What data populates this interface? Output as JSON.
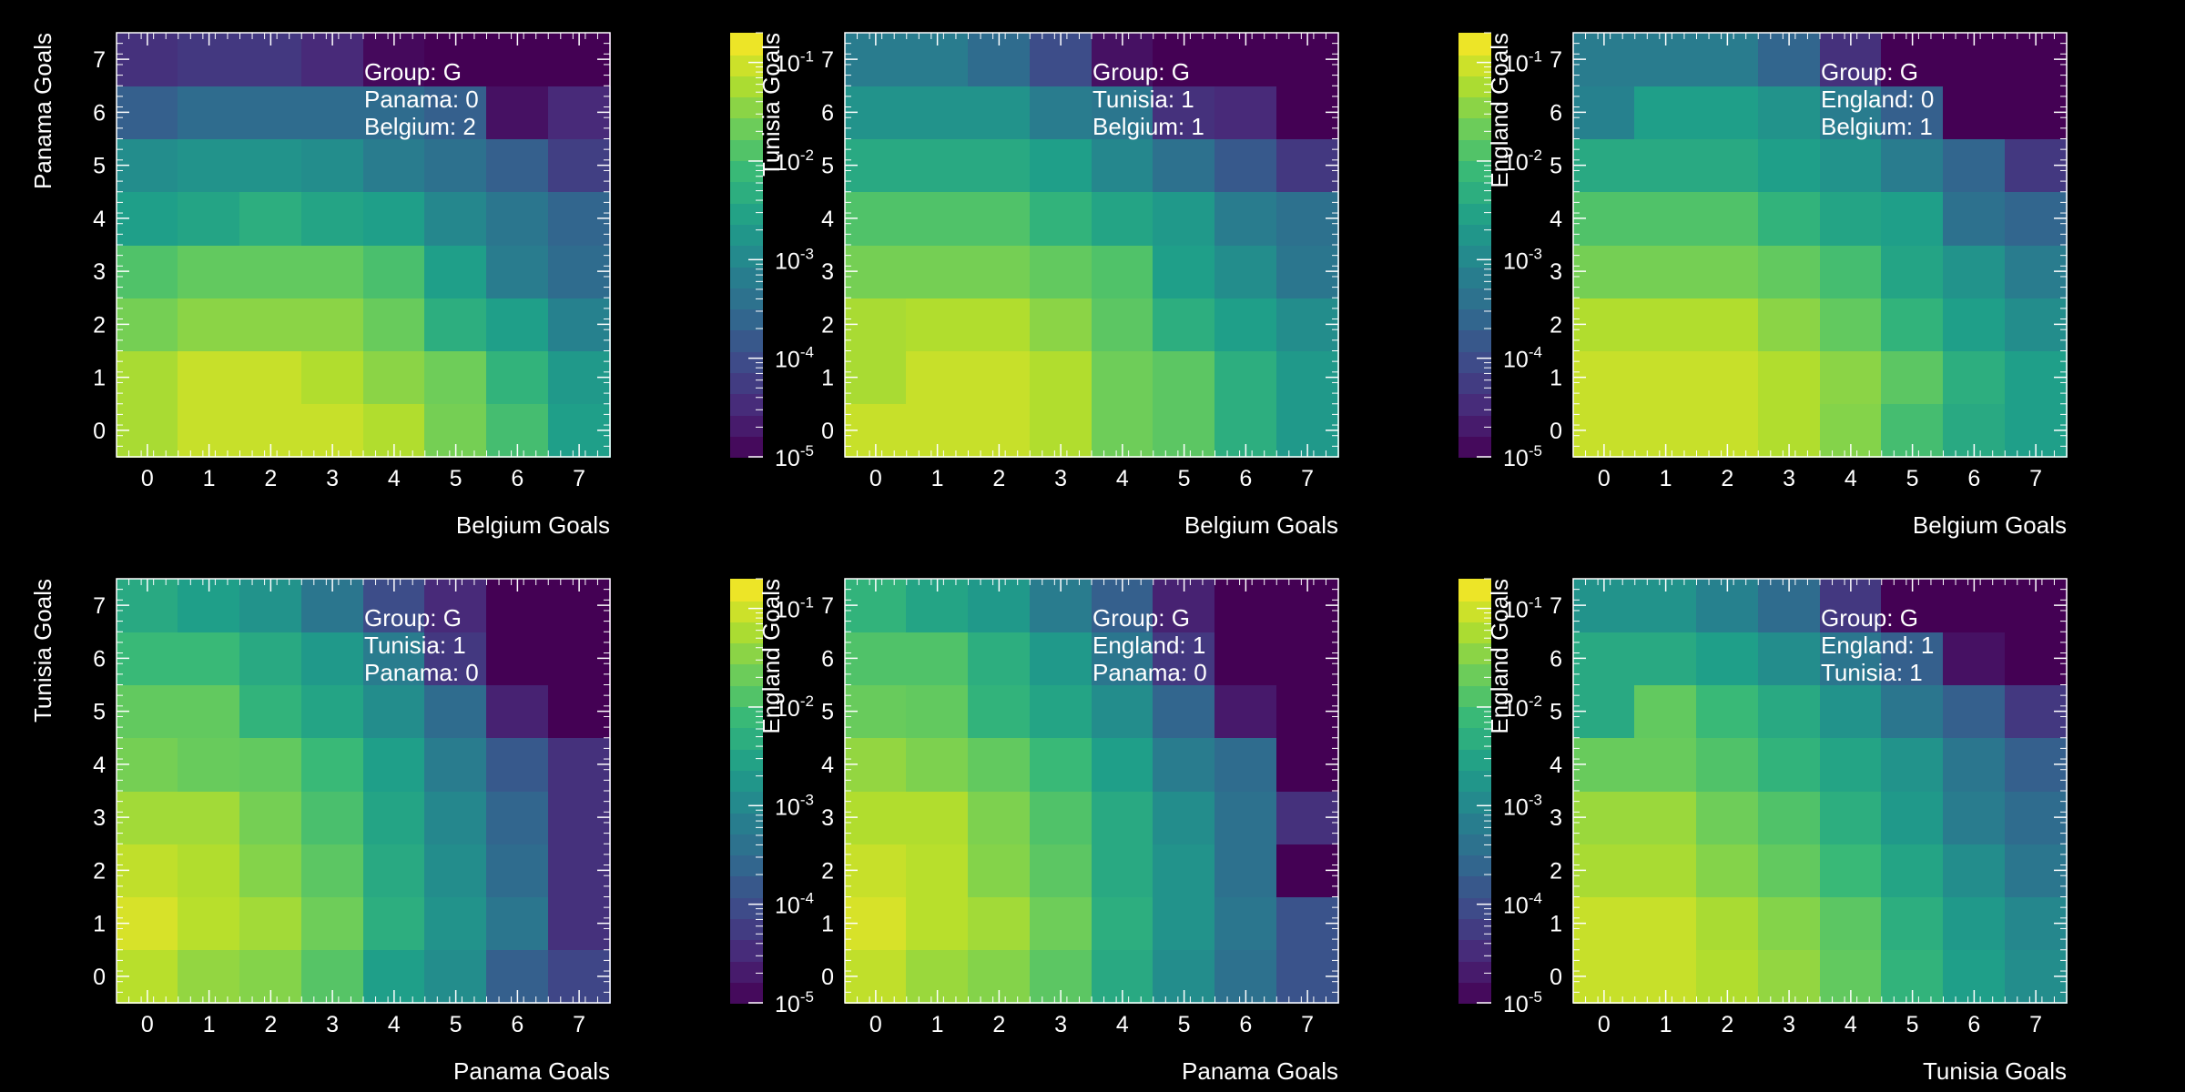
{
  "chart_data": [
    {
      "type": "heatmap",
      "xlabel": "Belgium Goals",
      "ylabel": "Panama Goals",
      "x_ticks": [
        "0",
        "1",
        "2",
        "3",
        "4",
        "5",
        "6",
        "7"
      ],
      "y_ticks": [
        "0",
        "1",
        "2",
        "3",
        "4",
        "5",
        "6",
        "7"
      ],
      "xlim": [
        -0.5,
        7.5
      ],
      "ylim": [
        -0.5,
        7.5
      ],
      "color_scale": "log",
      "colormap": "viridis",
      "zlim": [
        1e-05,
        0.2
      ],
      "colorbar_ticks": [
        {
          "base": "10",
          "exp": "-1"
        },
        {
          "base": "10",
          "exp": "-2"
        },
        {
          "base": "10",
          "exp": "-3"
        },
        {
          "base": "10",
          "exp": "-4"
        },
        {
          "base": "10",
          "exp": "-5"
        }
      ],
      "annotation": [
        "Group: G",
        "Panama: 0",
        "Belgium: 2"
      ],
      "z_log10": [
        [
          -1.25,
          -1.05,
          -1.05,
          -1.05,
          -1.2,
          -1.6,
          -2.0,
          -2.6
        ],
        [
          -1.25,
          -1.05,
          -1.05,
          -1.2,
          -1.45,
          -1.65,
          -2.2,
          -2.7
        ],
        [
          -1.6,
          -1.45,
          -1.45,
          -1.45,
          -1.7,
          -2.3,
          -2.6,
          -3.1
        ],
        [
          -1.9,
          -1.75,
          -1.75,
          -1.75,
          -1.95,
          -2.6,
          -3.2,
          -3.5
        ],
        [
          -2.6,
          -2.5,
          -2.3,
          -2.5,
          -2.6,
          -3.0,
          -3.3,
          -3.6
        ],
        [
          -2.9,
          -2.8,
          -2.8,
          -2.9,
          -3.2,
          -3.4,
          -3.7,
          -4.2
        ],
        [
          -3.7,
          -3.5,
          -3.5,
          -3.5,
          -3.5,
          -3.7,
          -4.8,
          -4.5
        ],
        [
          -4.4,
          -4.3,
          -4.3,
          -4.5,
          -4.9,
          -5.0,
          -5.0,
          -5.0
        ]
      ]
    },
    {
      "type": "heatmap",
      "xlabel": "Belgium Goals",
      "ylabel": "Tunisia Goals",
      "x_ticks": [
        "0",
        "1",
        "2",
        "3",
        "4",
        "5",
        "6",
        "7"
      ],
      "y_ticks": [
        "0",
        "1",
        "2",
        "3",
        "4",
        "5",
        "6",
        "7"
      ],
      "xlim": [
        -0.5,
        7.5
      ],
      "ylim": [
        -0.5,
        7.5
      ],
      "color_scale": "log",
      "colormap": "viridis",
      "zlim": [
        1e-05,
        0.2
      ],
      "colorbar_ticks": [
        {
          "base": "10",
          "exp": "-1"
        },
        {
          "base": "10",
          "exp": "-2"
        },
        {
          "base": "10",
          "exp": "-3"
        },
        {
          "base": "10",
          "exp": "-4"
        },
        {
          "base": "10",
          "exp": "-5"
        }
      ],
      "annotation": [
        "Group: G",
        "Tunisia: 1",
        "Belgium: 1"
      ],
      "z_log10": [
        [
          -1.05,
          -1.05,
          -1.05,
          -1.2,
          -1.65,
          -1.8,
          -2.3,
          -2.7
        ],
        [
          -1.25,
          -1.05,
          -1.05,
          -1.2,
          -1.65,
          -1.8,
          -2.3,
          -2.7
        ],
        [
          -1.25,
          -1.2,
          -1.2,
          -1.45,
          -1.8,
          -2.3,
          -2.6,
          -2.9
        ],
        [
          -1.6,
          -1.6,
          -1.6,
          -1.75,
          -1.9,
          -2.6,
          -2.9,
          -3.3
        ],
        [
          -1.9,
          -1.9,
          -1.9,
          -2.2,
          -2.5,
          -2.7,
          -3.2,
          -3.4
        ],
        [
          -2.4,
          -2.4,
          -2.4,
          -2.6,
          -3.0,
          -3.4,
          -3.8,
          -4.3
        ],
        [
          -2.8,
          -2.8,
          -2.8,
          -3.2,
          -3.3,
          -4.4,
          -4.5,
          -5.0
        ],
        [
          -3.2,
          -3.2,
          -3.5,
          -4.0,
          -4.8,
          -5.0,
          -5.0,
          -5.0
        ]
      ]
    },
    {
      "type": "heatmap",
      "xlabel": "Belgium Goals",
      "ylabel": "England Goals",
      "x_ticks": [
        "0",
        "1",
        "2",
        "3",
        "4",
        "5",
        "6",
        "7"
      ],
      "y_ticks": [
        "0",
        "1",
        "2",
        "3",
        "4",
        "5",
        "6",
        "7"
      ],
      "xlim": [
        -0.5,
        7.5
      ],
      "ylim": [
        -0.5,
        7.5
      ],
      "color_scale": "log",
      "colormap": "viridis",
      "zlim": [
        1e-05,
        0.2
      ],
      "colorbar_ticks": [
        {
          "base": "10",
          "exp": "-1"
        },
        {
          "base": "10",
          "exp": "-2"
        },
        {
          "base": "10",
          "exp": "-3"
        },
        {
          "base": "10",
          "exp": "-4"
        },
        {
          "base": "10",
          "exp": "-5"
        }
      ],
      "annotation": [
        "Group: G",
        "England: 0",
        "Belgium: 1"
      ],
      "z_log10": [
        [
          -1.05,
          -1.05,
          -1.05,
          -1.2,
          -1.5,
          -2.0,
          -2.4,
          -2.6
        ],
        [
          -1.05,
          -1.05,
          -1.05,
          -1.2,
          -1.45,
          -1.8,
          -2.3,
          -2.6
        ],
        [
          -1.2,
          -1.2,
          -1.2,
          -1.45,
          -1.75,
          -2.2,
          -2.6,
          -2.9
        ],
        [
          -1.6,
          -1.6,
          -1.6,
          -1.75,
          -2.0,
          -2.5,
          -2.8,
          -3.2
        ],
        [
          -1.9,
          -1.9,
          -1.9,
          -2.2,
          -2.5,
          -2.6,
          -3.4,
          -3.6
        ],
        [
          -2.4,
          -2.4,
          -2.4,
          -2.6,
          -2.8,
          -3.2,
          -3.6,
          -4.3
        ],
        [
          -3.1,
          -2.6,
          -2.6,
          -2.8,
          -3.2,
          -3.7,
          -5.0,
          -5.0
        ],
        [
          -3.2,
          -3.2,
          -3.2,
          -3.6,
          -4.4,
          -5.0,
          -5.0,
          -5.0
        ]
      ]
    },
    {
      "type": "heatmap",
      "xlabel": "Panama Goals",
      "ylabel": "Tunisia Goals",
      "x_ticks": [
        "0",
        "1",
        "2",
        "3",
        "4",
        "5",
        "6",
        "7"
      ],
      "y_ticks": [
        "0",
        "1",
        "2",
        "3",
        "4",
        "5",
        "6",
        "7"
      ],
      "xlim": [
        -0.5,
        7.5
      ],
      "ylim": [
        -0.5,
        7.5
      ],
      "color_scale": "log",
      "colormap": "viridis",
      "zlim": [
        1e-05,
        0.2
      ],
      "colorbar_ticks": [
        {
          "base": "10",
          "exp": "-1"
        },
        {
          "base": "10",
          "exp": "-2"
        },
        {
          "base": "10",
          "exp": "-3"
        },
        {
          "base": "10",
          "exp": "-4"
        },
        {
          "base": "10",
          "exp": "-5"
        }
      ],
      "annotation": [
        "Group: G",
        "Tunisia: 1",
        "Panama: 0"
      ],
      "z_log10": [
        [
          -1.15,
          -1.4,
          -1.5,
          -1.85,
          -2.6,
          -2.9,
          -3.7,
          -4.1
        ],
        [
          -0.95,
          -1.15,
          -1.3,
          -1.65,
          -2.3,
          -2.8,
          -3.3,
          -4.4
        ],
        [
          -1.1,
          -1.2,
          -1.5,
          -1.8,
          -2.4,
          -2.9,
          -3.5,
          -4.4
        ],
        [
          -1.3,
          -1.3,
          -1.6,
          -1.95,
          -2.5,
          -3.0,
          -3.6,
          -4.4
        ],
        [
          -1.6,
          -1.7,
          -1.75,
          -2.1,
          -2.6,
          -3.2,
          -3.8,
          -4.4
        ],
        [
          -1.75,
          -1.75,
          -2.2,
          -2.5,
          -2.9,
          -3.5,
          -4.6,
          -5.0
        ],
        [
          -2.1,
          -2.1,
          -2.4,
          -2.7,
          -3.2,
          -4.3,
          -5.0,
          -5.0
        ],
        [
          -2.4,
          -2.6,
          -2.8,
          -3.3,
          -4.0,
          -4.5,
          -5.0,
          -5.0
        ]
      ]
    },
    {
      "type": "heatmap",
      "xlabel": "Panama Goals",
      "ylabel": "England Goals",
      "x_ticks": [
        "0",
        "1",
        "2",
        "3",
        "4",
        "5",
        "6",
        "7"
      ],
      "y_ticks": [
        "0",
        "1",
        "2",
        "3",
        "4",
        "5",
        "6",
        "7"
      ],
      "xlim": [
        -0.5,
        7.5
      ],
      "ylim": [
        -0.5,
        7.5
      ],
      "color_scale": "log",
      "colormap": "viridis",
      "zlim": [
        1e-05,
        0.2
      ],
      "colorbar_ticks": [
        {
          "base": "10",
          "exp": "-1"
        },
        {
          "base": "10",
          "exp": "-2"
        },
        {
          "base": "10",
          "exp": "-3"
        },
        {
          "base": "10",
          "exp": "-4"
        },
        {
          "base": "10",
          "exp": "-5"
        }
      ],
      "annotation": [
        "Group: G",
        "England: 1",
        "Panama: 0"
      ],
      "z_log10": [
        [
          -1.1,
          -1.35,
          -1.5,
          -1.8,
          -2.4,
          -2.9,
          -3.4,
          -3.9
        ],
        [
          -0.95,
          -1.15,
          -1.3,
          -1.65,
          -2.3,
          -2.8,
          -3.3,
          -3.9
        ],
        [
          -1.05,
          -1.15,
          -1.5,
          -1.8,
          -2.4,
          -2.8,
          -3.4,
          -5.0
        ],
        [
          -1.2,
          -1.2,
          -1.55,
          -1.9,
          -2.4,
          -2.9,
          -3.4,
          -4.4
        ],
        [
          -1.4,
          -1.55,
          -1.75,
          -2.1,
          -2.6,
          -3.2,
          -3.5,
          -5.0
        ],
        [
          -1.7,
          -1.75,
          -2.2,
          -2.5,
          -2.9,
          -3.6,
          -4.7,
          -5.0
        ],
        [
          -1.9,
          -1.9,
          -2.3,
          -2.7,
          -3.3,
          -4.3,
          -5.0,
          -5.0
        ],
        [
          -2.2,
          -2.5,
          -2.7,
          -3.2,
          -3.7,
          -4.6,
          -5.0,
          -5.0
        ]
      ]
    },
    {
      "type": "heatmap",
      "xlabel": "Tunisia Goals",
      "ylabel": "England Goals",
      "x_ticks": [
        "0",
        "1",
        "2",
        "3",
        "4",
        "5",
        "6",
        "7"
      ],
      "y_ticks": [
        "0",
        "1",
        "2",
        "3",
        "4",
        "5",
        "6",
        "7"
      ],
      "xlim": [
        -0.5,
        7.5
      ],
      "ylim": [
        -0.5,
        7.5
      ],
      "color_scale": "log",
      "colormap": "viridis",
      "zlim": [
        1e-05,
        0.2
      ],
      "colorbar_ticks": [
        {
          "base": "10",
          "exp": "-1"
        },
        {
          "base": "10",
          "exp": "-2"
        },
        {
          "base": "10",
          "exp": "-3"
        },
        {
          "base": "10",
          "exp": "-4"
        },
        {
          "base": "10",
          "exp": "-5"
        }
      ],
      "annotation": [
        "Group: G",
        "England: 1",
        "Tunisia: 1"
      ],
      "z_log10": [
        [
          -1.05,
          -1.05,
          -1.2,
          -1.4,
          -1.75,
          -2.2,
          -2.6,
          -2.9
        ],
        [
          -1.05,
          -1.05,
          -1.25,
          -1.5,
          -1.8,
          -2.3,
          -2.7,
          -3.0
        ],
        [
          -1.25,
          -1.25,
          -1.5,
          -1.75,
          -2.1,
          -2.5,
          -2.9,
          -3.3
        ],
        [
          -1.35,
          -1.35,
          -1.65,
          -1.9,
          -2.3,
          -2.7,
          -3.2,
          -3.5
        ],
        [
          -1.7,
          -1.7,
          -1.9,
          -2.2,
          -2.5,
          -2.8,
          -3.3,
          -3.7
        ],
        [
          -2.4,
          -1.75,
          -2.1,
          -2.4,
          -2.8,
          -3.3,
          -3.7,
          -4.3
        ],
        [
          -2.4,
          -2.4,
          -2.6,
          -2.9,
          -3.3,
          -3.7,
          -4.8,
          -5.0
        ],
        [
          -2.8,
          -2.8,
          -3.1,
          -3.5,
          -4.3,
          -5.0,
          -5.0,
          -5.0
        ]
      ]
    }
  ]
}
